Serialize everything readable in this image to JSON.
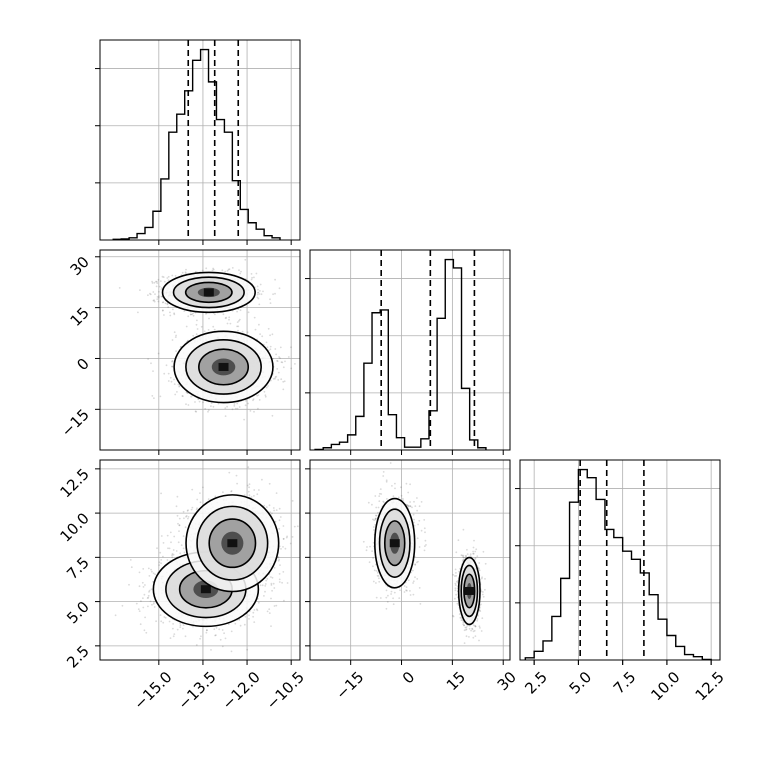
{
  "chart_data": [
    {
      "panel": "hist_p1",
      "type": "histogram",
      "variable": "p1",
      "x_range": [
        -17.0,
        -10.2
      ],
      "bin_width": 0.27,
      "bin_edges_start": -16.55,
      "counts": [
        2,
        3,
        6,
        18,
        35,
        80,
        170,
        300,
        350,
        415,
        500,
        530,
        440,
        335,
        300,
        165,
        85,
        48,
        30,
        12,
        6
      ],
      "quantiles": [
        -14.0,
        -13.1,
        -12.3
      ],
      "x_ticks": [
        -15.0,
        -13.5,
        -12.0,
        -10.5
      ],
      "x_tick_labels": [
        "−15.0",
        "−13.5",
        "−12.0",
        "−10.5"
      ],
      "grid": true
    },
    {
      "panel": "hist_p2",
      "type": "histogram",
      "variable": "p2",
      "x_range": [
        -27.0,
        32.0
      ],
      "bin_width": 2.4,
      "bin_edges_start": -25.5,
      "counts": [
        1,
        4,
        10,
        14,
        27,
        60,
        155,
        245,
        250,
        63,
        22,
        5,
        5,
        20,
        70,
        235,
        340,
        325,
        110,
        18,
        4
      ],
      "quantiles": [
        -6.0,
        8.5,
        21.5
      ],
      "x_ticks": [
        -15,
        0,
        15,
        30
      ],
      "x_tick_labels": [
        "−15",
        "0",
        "15",
        "30"
      ],
      "grid": true
    },
    {
      "panel": "hist_p3",
      "type": "histogram",
      "variable": "p3",
      "x_range": [
        1.7,
        13.0
      ],
      "bin_width": 0.5,
      "bin_edges_start": 2.0,
      "counts": [
        4,
        16,
        35,
        80,
        150,
        290,
        350,
        335,
        295,
        240,
        225,
        200,
        185,
        160,
        120,
        75,
        45,
        25,
        10,
        6,
        1
      ],
      "quantiles": [
        5.1,
        6.6,
        8.7
      ],
      "x_ticks": [
        2.5,
        5.0,
        7.5,
        10.0,
        12.5
      ],
      "x_tick_labels": [
        "2.5",
        "5.0",
        "7.5",
        "10.0",
        "12.5"
      ],
      "grid": true
    },
    {
      "panel": "p1_vs_p2",
      "type": "scatter",
      "x_variable": "p1",
      "y_variable": "p2",
      "x_range": [
        -17.0,
        -10.2
      ],
      "y_range": [
        -27.0,
        32.0
      ],
      "modes": [
        {
          "x": -13.3,
          "y": 19.5,
          "sx": 0.75,
          "sy": 2.8
        },
        {
          "x": -12.8,
          "y": -2.5,
          "sx": 0.8,
          "sy": 5.0
        }
      ],
      "y_ticks": [
        -15,
        0,
        15,
        30
      ],
      "y_tick_labels": [
        "−15",
        "0",
        "15",
        "30"
      ],
      "contours": true,
      "grid": true
    },
    {
      "panel": "p1_vs_p3",
      "type": "scatter",
      "x_variable": "p1",
      "y_variable": "p3",
      "x_range": [
        -17.0,
        -10.2
      ],
      "y_range": [
        1.7,
        13.0
      ],
      "modes": [
        {
          "x": -13.4,
          "y": 5.7,
          "sx": 0.85,
          "sy": 1.0
        },
        {
          "x": -12.5,
          "y": 8.3,
          "sx": 0.75,
          "sy": 1.3
        }
      ],
      "y_ticks": [
        2.5,
        5.0,
        7.5,
        10.0,
        12.5
      ],
      "y_tick_labels": [
        "2.5",
        "5.0",
        "7.5",
        "10.0",
        "12.5"
      ],
      "x_ticks": [
        -15.0,
        -13.5,
        -12.0,
        -10.5
      ],
      "x_tick_labels": [
        "−15.0",
        "−13.5",
        "−12.0",
        "−10.5"
      ],
      "contours": true,
      "grid": true
    },
    {
      "panel": "p2_vs_p3",
      "type": "scatter",
      "x_variable": "p2",
      "y_variable": "p3",
      "x_range": [
        -27.0,
        32.0
      ],
      "y_range": [
        1.7,
        13.0
      ],
      "modes": [
        {
          "x": -2.0,
          "y": 8.3,
          "sx": 2.8,
          "sy": 1.2
        },
        {
          "x": 20.0,
          "y": 5.6,
          "sx": 1.5,
          "sy": 0.9
        }
      ],
      "x_ticks": [
        -15,
        0,
        15,
        30
      ],
      "x_tick_labels": [
        "−15",
        "0",
        "15",
        "30"
      ],
      "contours": true,
      "grid": true
    }
  ],
  "style": {
    "line_color": "#000000",
    "grid_color": "#b0b0b0",
    "scatter_color": "#555555",
    "density_light": "#e6e6e6",
    "density_dark": "#111111"
  }
}
